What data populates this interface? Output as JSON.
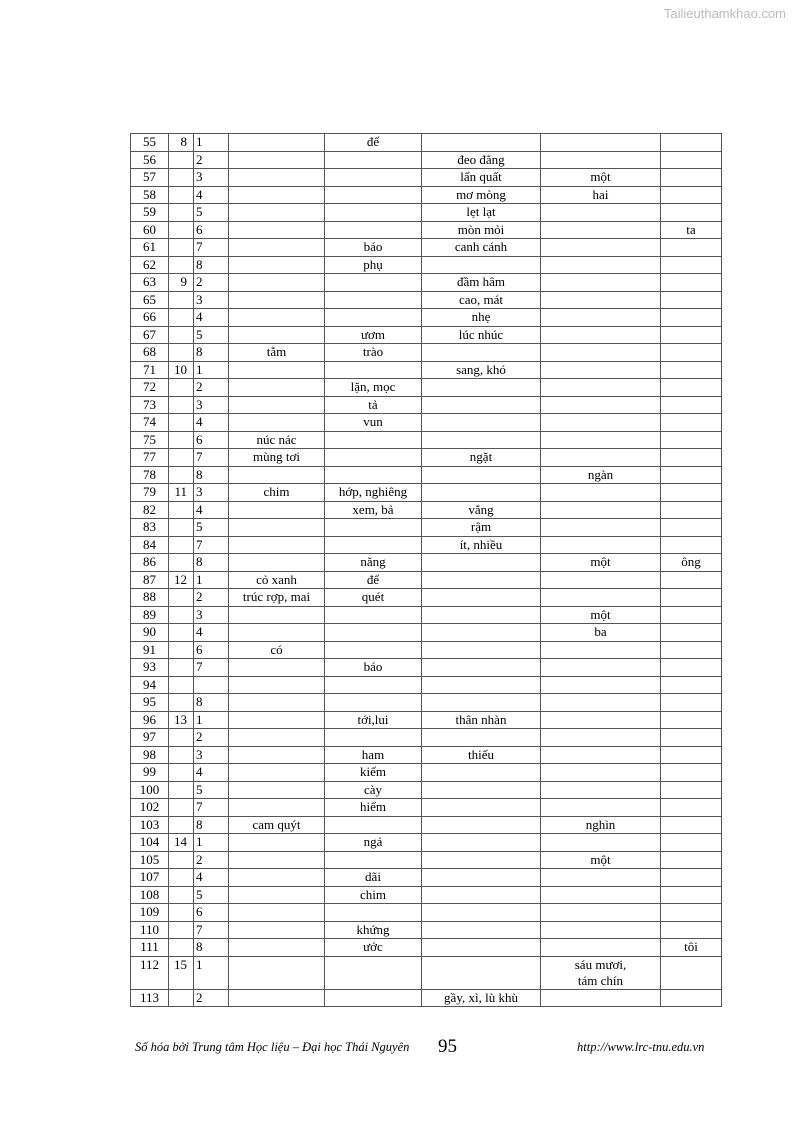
{
  "watermark": "Tailieuthamkhao.com",
  "table": {
    "rows": [
      [
        "55",
        "8",
        "1",
        "",
        "để",
        "",
        "",
        ""
      ],
      [
        "56",
        "",
        "2",
        "",
        "",
        "đeo đẳng",
        "",
        ""
      ],
      [
        "57",
        "",
        "3",
        "",
        "",
        "lẩn quất",
        "một",
        ""
      ],
      [
        "58",
        "",
        "4",
        "",
        "",
        "mơ mòng",
        "hai",
        ""
      ],
      [
        "59",
        "",
        "5",
        "",
        "",
        "lẹt lạt",
        "",
        ""
      ],
      [
        "60",
        "",
        "6",
        "",
        "",
        "mòn mỏi",
        "",
        "ta"
      ],
      [
        "61",
        "",
        "7",
        "",
        "báo",
        "canh cánh",
        "",
        ""
      ],
      [
        "62",
        "",
        "8",
        "",
        "phụ",
        "",
        "",
        ""
      ],
      [
        "63",
        "9",
        "2",
        "",
        "",
        "đầm hâm",
        "",
        ""
      ],
      [
        "65",
        "",
        "3",
        "",
        "",
        "cao, mát",
        "",
        ""
      ],
      [
        "66",
        "",
        "4",
        "",
        "",
        "nhẹ",
        "",
        ""
      ],
      [
        "67",
        "",
        "5",
        "",
        "ươm",
        "lúc nhúc",
        "",
        ""
      ],
      [
        "68",
        "",
        "8",
        "tằm",
        "trào",
        "",
        "",
        ""
      ],
      [
        "71",
        "10",
        "1",
        "",
        "",
        "sang, khó",
        "",
        ""
      ],
      [
        "72",
        "",
        "2",
        "",
        "lặn, mọc",
        "",
        "",
        ""
      ],
      [
        "73",
        "",
        "3",
        "",
        "tả",
        "",
        "",
        ""
      ],
      [
        "74",
        "",
        "4",
        "",
        "vun",
        "",
        "",
        ""
      ],
      [
        "75",
        "",
        "6",
        "núc nác",
        "",
        "",
        "",
        ""
      ],
      [
        "77",
        "",
        "7",
        "mùng tơi",
        "",
        "ngặt",
        "",
        ""
      ],
      [
        "78",
        "",
        "8",
        "",
        "",
        "",
        "ngàn",
        ""
      ],
      [
        "79",
        "11",
        "3",
        "chim",
        "hớp, nghiêng",
        "",
        "",
        ""
      ],
      [
        "82",
        "",
        "4",
        "",
        "xem, bả",
        "vắng",
        "",
        ""
      ],
      [
        "83",
        "",
        "5",
        "",
        "",
        "rậm",
        "",
        ""
      ],
      [
        "84",
        "",
        "7",
        "",
        "",
        "ít, nhiều",
        "",
        ""
      ],
      [
        "86",
        "",
        "8",
        "",
        "năng",
        "",
        "một",
        "ông"
      ],
      [
        "87",
        "12",
        "1",
        "cỏ xanh",
        "để",
        "",
        "",
        ""
      ],
      [
        "88",
        "",
        "2",
        "trúc rợp, mai",
        "quét",
        "",
        "",
        ""
      ],
      [
        "89",
        "",
        "3",
        "",
        "",
        "",
        "một",
        ""
      ],
      [
        "90",
        "",
        "4",
        "",
        "",
        "",
        "ba",
        ""
      ],
      [
        "91",
        "",
        "6",
        "có",
        "",
        "",
        "",
        ""
      ],
      [
        "93",
        "",
        "7",
        "",
        "báo",
        "",
        "",
        ""
      ],
      [
        "94",
        "",
        "",
        "",
        "",
        "",
        "",
        ""
      ],
      [
        "95",
        "",
        "8",
        "",
        "",
        "",
        "",
        ""
      ],
      [
        "96",
        "13",
        "1",
        "",
        "tới,lui",
        "thân nhàn",
        "",
        ""
      ],
      [
        "97",
        "",
        "2",
        "",
        "",
        "",
        "",
        ""
      ],
      [
        "98",
        "",
        "3",
        "",
        "ham",
        "thiếu",
        "",
        ""
      ],
      [
        "99",
        "",
        "4",
        "",
        "kiếm",
        "",
        "",
        ""
      ],
      [
        "100",
        "",
        "5",
        "",
        "cày",
        "",
        "",
        ""
      ],
      [
        "102",
        "",
        "7",
        "",
        "hiểm",
        "",
        "",
        ""
      ],
      [
        "103",
        "",
        "8",
        "cam quýt",
        "",
        "",
        "nghìn",
        ""
      ],
      [
        "104",
        "14",
        "1",
        "",
        "ngả",
        "",
        "",
        ""
      ],
      [
        "105",
        "",
        "2",
        "",
        "",
        "",
        "một",
        ""
      ],
      [
        "107",
        "",
        "4",
        "",
        "dãi",
        "",
        "",
        ""
      ],
      [
        "108",
        "",
        "5",
        "",
        "chim",
        "",
        "",
        ""
      ],
      [
        "109",
        "",
        "6",
        "",
        "",
        "",
        "",
        ""
      ],
      [
        "110",
        "",
        "7",
        "",
        "khứng",
        "",
        "",
        ""
      ],
      [
        "111",
        "",
        "8",
        "",
        "ước",
        "",
        "",
        "tôi"
      ],
      [
        "112",
        "15",
        "1",
        "",
        "",
        "",
        "sáu mươi,\ntám chín",
        ""
      ],
      [
        "113",
        "",
        "2",
        "",
        "",
        "gầy, xì, lù khù",
        "",
        ""
      ]
    ]
  },
  "footer": {
    "left": "Số hóa bởi Trung tâm Học liệu – Đại học Thái Nguyên",
    "page": "95",
    "right": "http://www.lrc-tnu.edu.vn"
  }
}
